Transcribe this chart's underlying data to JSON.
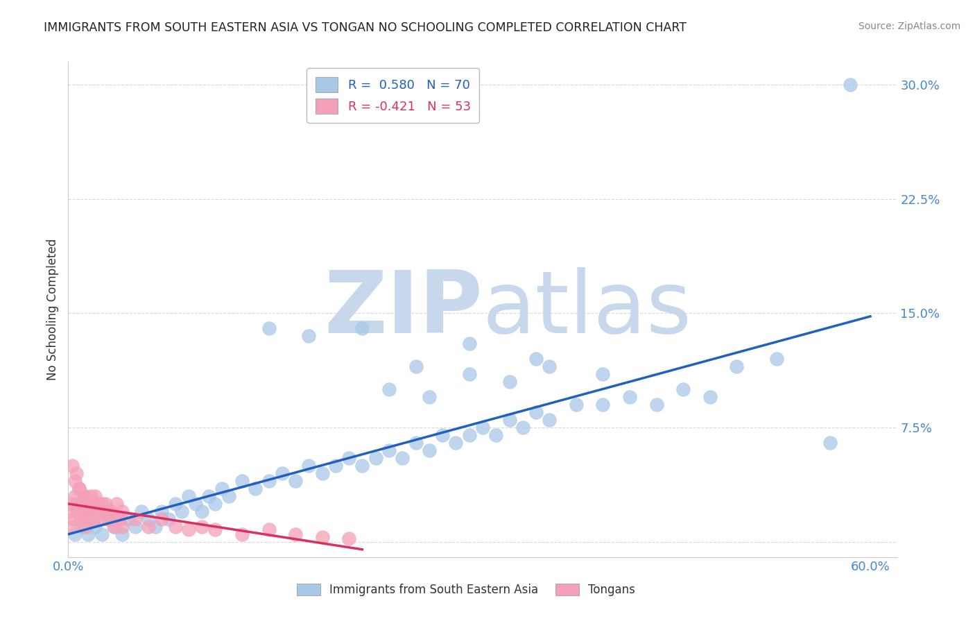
{
  "title": "IMMIGRANTS FROM SOUTH EASTERN ASIA VS TONGAN NO SCHOOLING COMPLETED CORRELATION CHART",
  "source": "Source: ZipAtlas.com",
  "ylabel": "No Schooling Completed",
  "xlim": [
    0.0,
    0.62
  ],
  "ylim": [
    -0.01,
    0.315
  ],
  "ytick_positions": [
    0.0,
    0.075,
    0.15,
    0.225,
    0.3
  ],
  "yticklabels": [
    "",
    "7.5%",
    "15.0%",
    "22.5%",
    "30.0%"
  ],
  "xtick_positions": [
    0.0,
    0.6
  ],
  "xticklabels": [
    "0.0%",
    "60.0%"
  ],
  "blue_R": "0.580",
  "blue_N": 70,
  "pink_R": "-0.421",
  "pink_N": 53,
  "blue_color": "#a8c8e8",
  "pink_color": "#f4a0b8",
  "blue_line_color": "#2060c0",
  "pink_line_color": "#d83060",
  "watermark_zip": "ZIP",
  "watermark_atlas": "atlas",
  "watermark_color": "#c8d8ec",
  "legend_label_blue": "Immigrants from South Eastern Asia",
  "legend_label_pink": "Tongans",
  "blue_scatter_x": [
    0.005,
    0.01,
    0.015,
    0.02,
    0.025,
    0.03,
    0.035,
    0.04,
    0.045,
    0.05,
    0.055,
    0.06,
    0.065,
    0.07,
    0.075,
    0.08,
    0.085,
    0.09,
    0.095,
    0.1,
    0.105,
    0.11,
    0.115,
    0.12,
    0.13,
    0.14,
    0.15,
    0.16,
    0.17,
    0.18,
    0.19,
    0.2,
    0.21,
    0.22,
    0.23,
    0.24,
    0.25,
    0.26,
    0.27,
    0.28,
    0.29,
    0.3,
    0.31,
    0.32,
    0.33,
    0.34,
    0.35,
    0.36,
    0.38,
    0.4,
    0.42,
    0.44,
    0.46,
    0.48,
    0.24,
    0.27,
    0.3,
    0.33,
    0.36,
    0.4,
    0.15,
    0.18,
    0.22,
    0.26,
    0.3,
    0.35,
    0.5,
    0.53,
    0.57,
    0.585
  ],
  "blue_scatter_y": [
    0.005,
    0.01,
    0.005,
    0.01,
    0.005,
    0.015,
    0.01,
    0.005,
    0.015,
    0.01,
    0.02,
    0.015,
    0.01,
    0.02,
    0.015,
    0.025,
    0.02,
    0.03,
    0.025,
    0.02,
    0.03,
    0.025,
    0.035,
    0.03,
    0.04,
    0.035,
    0.04,
    0.045,
    0.04,
    0.05,
    0.045,
    0.05,
    0.055,
    0.05,
    0.055,
    0.06,
    0.055,
    0.065,
    0.06,
    0.07,
    0.065,
    0.07,
    0.075,
    0.07,
    0.08,
    0.075,
    0.085,
    0.08,
    0.09,
    0.09,
    0.095,
    0.09,
    0.1,
    0.095,
    0.1,
    0.095,
    0.11,
    0.105,
    0.115,
    0.11,
    0.14,
    0.135,
    0.14,
    0.115,
    0.13,
    0.12,
    0.115,
    0.12,
    0.065,
    0.3
  ],
  "pink_scatter_x": [
    0.001,
    0.002,
    0.003,
    0.004,
    0.005,
    0.006,
    0.007,
    0.008,
    0.009,
    0.01,
    0.011,
    0.012,
    0.013,
    0.014,
    0.015,
    0.016,
    0.017,
    0.018,
    0.019,
    0.02,
    0.022,
    0.024,
    0.026,
    0.028,
    0.03,
    0.032,
    0.034,
    0.036,
    0.038,
    0.04,
    0.005,
    0.008,
    0.012,
    0.016,
    0.02,
    0.025,
    0.03,
    0.035,
    0.04,
    0.05,
    0.06,
    0.07,
    0.08,
    0.09,
    0.1,
    0.11,
    0.13,
    0.15,
    0.17,
    0.19,
    0.003,
    0.006,
    0.21
  ],
  "pink_scatter_y": [
    0.02,
    0.025,
    0.01,
    0.015,
    0.03,
    0.025,
    0.02,
    0.035,
    0.015,
    0.02,
    0.025,
    0.03,
    0.01,
    0.025,
    0.015,
    0.02,
    0.03,
    0.025,
    0.015,
    0.02,
    0.025,
    0.015,
    0.02,
    0.025,
    0.015,
    0.02,
    0.01,
    0.025,
    0.015,
    0.02,
    0.04,
    0.035,
    0.03,
    0.025,
    0.03,
    0.025,
    0.02,
    0.015,
    0.01,
    0.015,
    0.01,
    0.015,
    0.01,
    0.008,
    0.01,
    0.008,
    0.005,
    0.008,
    0.005,
    0.003,
    0.05,
    0.045,
    0.002
  ],
  "blue_trend_x": [
    0.0,
    0.6
  ],
  "blue_trend_y": [
    0.005,
    0.148
  ],
  "pink_trend_x": [
    0.0,
    0.22
  ],
  "pink_trend_y": [
    0.025,
    -0.005
  ],
  "background_color": "#ffffff",
  "grid_color": "#d8d8d8",
  "tick_color": "#4488cc",
  "ylabel_color": "#333333",
  "title_color": "#222222",
  "source_color": "#888888"
}
